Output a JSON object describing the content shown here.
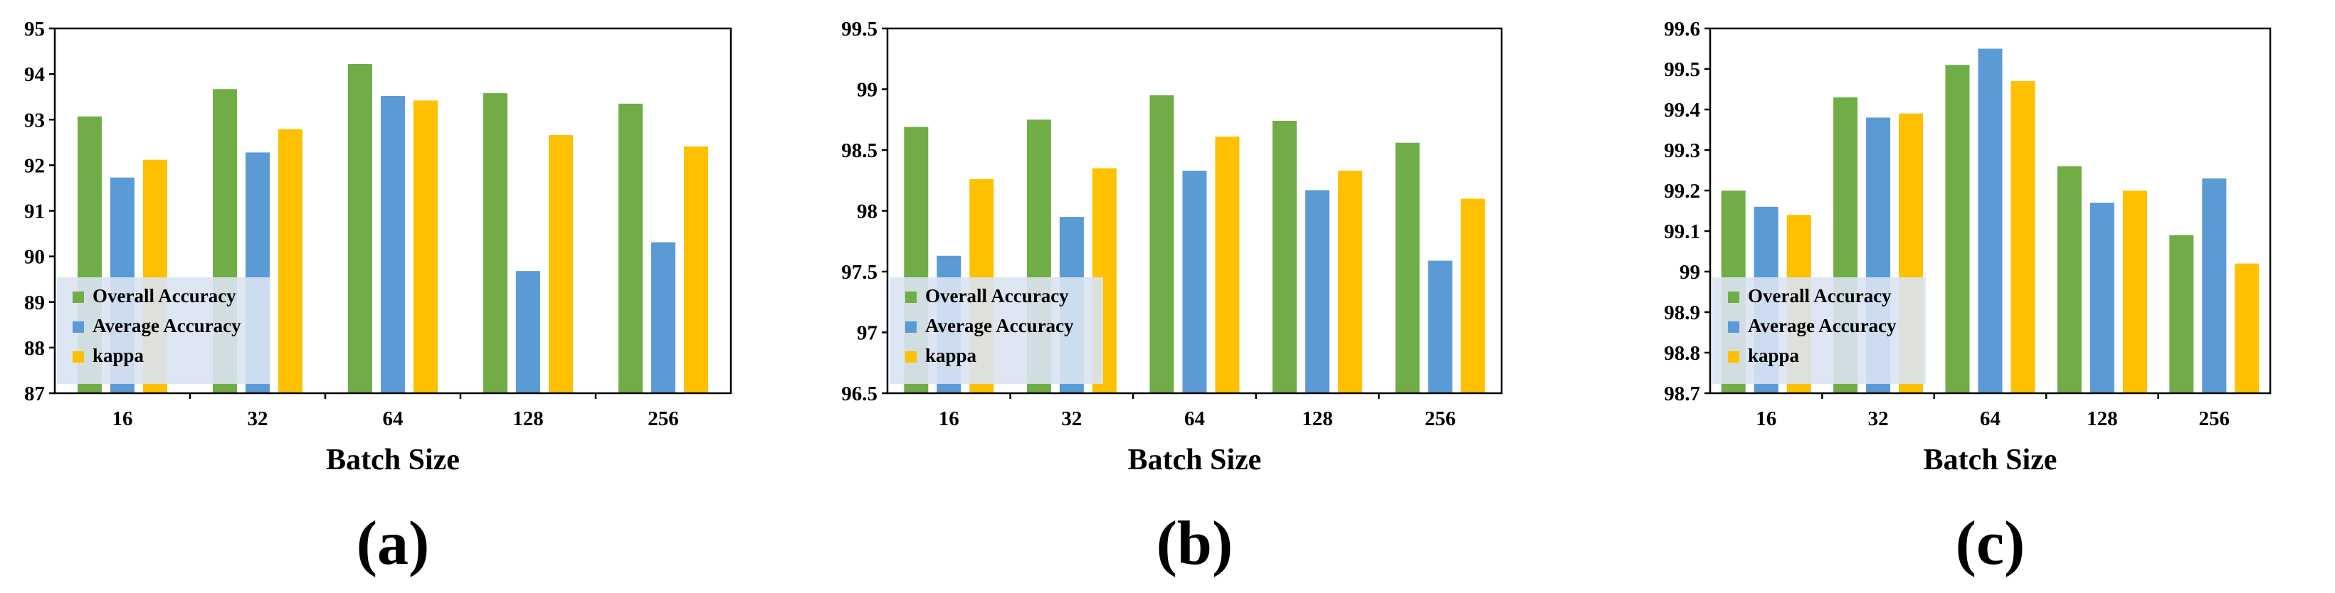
{
  "colors": {
    "overall": "#70AD47",
    "average": "#5B9BD5",
    "kappa": "#FFC000",
    "legend_bg": "#DAE3F3"
  },
  "chart_data": [
    {
      "type": "bar",
      "title": "",
      "panel_label": "(a)",
      "xlabel": "Batch Size",
      "ylabel": "",
      "categories": [
        "16",
        "32",
        "64",
        "128",
        "256"
      ],
      "ylim": [
        87,
        95
      ],
      "yticks": [
        "87",
        "88",
        "89",
        "90",
        "91",
        "92",
        "93",
        "94",
        "95"
      ],
      "legend": [
        "Overall Accuracy",
        "Average Accuracy",
        "kappa"
      ],
      "legend_position": "bottom-left",
      "grid": false,
      "series": [
        {
          "name": "Overall Accuracy",
          "values": [
            93.07,
            93.67,
            94.22,
            93.58,
            93.35
          ]
        },
        {
          "name": "Average Accuracy",
          "values": [
            91.73,
            92.28,
            93.52,
            89.68,
            90.31
          ]
        },
        {
          "name": "kappa",
          "values": [
            92.12,
            92.79,
            93.42,
            92.66,
            92.41
          ]
        }
      ]
    },
    {
      "type": "bar",
      "title": "",
      "panel_label": "(b)",
      "xlabel": "Batch Size",
      "ylabel": "",
      "categories": [
        "16",
        "32",
        "64",
        "128",
        "256"
      ],
      "ylim": [
        96.5,
        99.5
      ],
      "yticks": [
        "96.5",
        "97",
        "97.5",
        "98",
        "98.5",
        "99",
        "99.5"
      ],
      "legend": [
        "Overall Accuracy",
        "Average Accuracy",
        "kappa"
      ],
      "legend_position": "bottom-left",
      "grid": false,
      "series": [
        {
          "name": "Overall Accuracy",
          "values": [
            98.69,
            98.75,
            98.95,
            98.74,
            98.56
          ]
        },
        {
          "name": "Average Accuracy",
          "values": [
            97.63,
            97.95,
            98.33,
            98.17,
            97.59
          ]
        },
        {
          "name": "kappa",
          "values": [
            98.26,
            98.35,
            98.61,
            98.33,
            98.1
          ]
        }
      ]
    },
    {
      "type": "bar",
      "title": "",
      "panel_label": "(c)",
      "xlabel": "Batch Size",
      "ylabel": "",
      "categories": [
        "16",
        "32",
        "64",
        "128",
        "256"
      ],
      "ylim": [
        98.7,
        99.6
      ],
      "yticks": [
        "98.7",
        "98.8",
        "98.9",
        "99",
        "99.1",
        "99.2",
        "99.3",
        "99.4",
        "99.5",
        "99.6"
      ],
      "legend": [
        "Overall Accuracy",
        "Average Accuracy",
        "kappa"
      ],
      "legend_position": "bottom-left",
      "grid": false,
      "series": [
        {
          "name": "Overall Accuracy",
          "values": [
            99.2,
            99.43,
            99.51,
            99.26,
            99.09
          ]
        },
        {
          "name": "Average Accuracy",
          "values": [
            99.16,
            99.38,
            99.55,
            99.17,
            99.23
          ]
        },
        {
          "name": "kappa",
          "values": [
            99.14,
            99.39,
            99.47,
            99.2,
            99.02
          ]
        }
      ]
    }
  ]
}
